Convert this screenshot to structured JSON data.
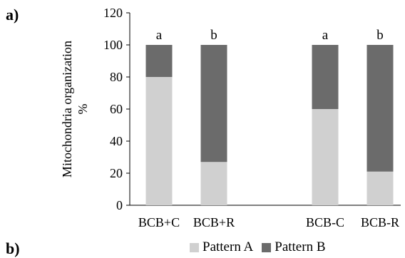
{
  "panel_labels": {
    "a": "a)",
    "b": "b)"
  },
  "chart_data": {
    "type": "bar",
    "stacked": true,
    "categories": [
      "BCB+C",
      "BCB+R",
      "BCB-C",
      "BCB-R"
    ],
    "series": [
      {
        "name": "Pattern A",
        "values": [
          80,
          27,
          60,
          21
        ],
        "color": "#d0d0d0"
      },
      {
        "name": "Pattern B",
        "values": [
          20,
          73,
          40,
          79
        ],
        "color": "#6b6b6b"
      }
    ],
    "significance_letters": [
      "a",
      "b",
      "a",
      "b"
    ],
    "ylabel_line1": "Mitochondria organization",
    "ylabel_line2": "%",
    "xlabel": "",
    "ylim": [
      0,
      120
    ],
    "yticks": [
      0,
      20,
      40,
      60,
      80,
      100,
      120
    ],
    "grid": false,
    "legend_position": "bottom"
  }
}
